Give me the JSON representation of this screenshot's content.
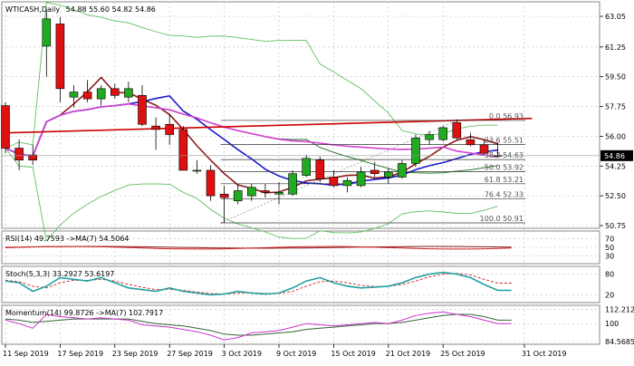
{
  "header": {
    "symbol": "WTICASH,Daily",
    "ohlc": "54.88 55.60 54.82 54.86"
  },
  "colors": {
    "bull": "#22aa22",
    "bear": "#dd1111",
    "grid": "#bbbbbb",
    "ma_blue": "#1a1acc",
    "ma_brown": "#8b1a1a",
    "ma_green": "#2c7a2c",
    "ma_magenta": "#d040d0",
    "ma_red": "#cc0000",
    "bb": "#5fbf5f",
    "osc_teal": "#20a0a0",
    "osc_red": "#cc2222",
    "mom_magenta": "#cc33cc",
    "mom_green": "#336633",
    "price_box": "#000000"
  },
  "price_axis": {
    "ticks": [
      "63.05",
      "61.25",
      "59.50",
      "57.75",
      "56.00",
      "54.25",
      "52.50",
      "50.75"
    ],
    "current": "54.86"
  },
  "fib_levels": [
    {
      "label": "0.0 56.93",
      "value": 56.93
    },
    {
      "label": "23.6 55.51",
      "value": 55.51
    },
    {
      "label": "38.2 54.63",
      "value": 54.63
    },
    {
      "label": "50.0 53.92",
      "value": 53.92
    },
    {
      "label": "61.8 53.21",
      "value": 53.21
    },
    {
      "label": "76.4 52.33",
      "value": 52.33
    },
    {
      "label": "100.0 50.91",
      "value": 50.91
    }
  ],
  "panels": {
    "rsi": {
      "label": "RSI(14) 49.7593 ->MA(7) 54.5064",
      "ticks": [
        "70",
        "50",
        "30"
      ]
    },
    "stoch": {
      "label": "Stoch(5,3,3) 33.2927 53.6197",
      "ticks": [
        "80",
        "20"
      ]
    },
    "momentum": {
      "label": "Momentum(14) 99.8726 ->MA(7) 102.7917",
      "ticks": [
        "112.2125",
        "100",
        "84.5685"
      ]
    }
  },
  "time_axis": [
    "11 Sep 2019",
    "17 Sep 2019",
    "23 Sep 2019",
    "27 Sep 2019",
    "3 Oct 2019",
    "9 Oct 2019",
    "15 Oct 2019",
    "21 Oct 2019",
    "25 Oct 2019",
    "31 Oct 2019"
  ],
  "candles": [
    {
      "o": 57.8,
      "h": 58.0,
      "l": 55.0,
      "c": 55.3
    },
    {
      "o": 55.3,
      "h": 55.8,
      "l": 54.0,
      "c": 54.6
    },
    {
      "o": 54.9,
      "h": 55.5,
      "l": 54.3,
      "c": 54.6
    },
    {
      "o": 61.3,
      "h": 63.4,
      "l": 59.5,
      "c": 62.9
    },
    {
      "o": 62.6,
      "h": 63.0,
      "l": 58.0,
      "c": 58.8
    },
    {
      "o": 58.3,
      "h": 59.0,
      "l": 57.7,
      "c": 58.6
    },
    {
      "o": 58.6,
      "h": 59.3,
      "l": 58.0,
      "c": 58.2
    },
    {
      "o": 58.2,
      "h": 59.0,
      "l": 57.8,
      "c": 58.8
    },
    {
      "o": 58.8,
      "h": 59.1,
      "l": 58.2,
      "c": 58.4
    },
    {
      "o": 58.3,
      "h": 59.2,
      "l": 58.0,
      "c": 58.8
    },
    {
      "o": 58.4,
      "h": 59.0,
      "l": 56.6,
      "c": 56.7
    },
    {
      "o": 56.6,
      "h": 57.1,
      "l": 55.2,
      "c": 56.4
    },
    {
      "o": 56.7,
      "h": 57.3,
      "l": 55.5,
      "c": 56.1
    },
    {
      "o": 56.4,
      "h": 56.6,
      "l": 54.0,
      "c": 54.0
    },
    {
      "o": 54.0,
      "h": 54.6,
      "l": 53.8,
      "c": 54.0
    },
    {
      "o": 54.0,
      "h": 54.3,
      "l": 52.2,
      "c": 52.5
    },
    {
      "o": 52.6,
      "h": 53.1,
      "l": 50.9,
      "c": 52.4
    },
    {
      "o": 52.2,
      "h": 53.2,
      "l": 52.0,
      "c": 52.8
    },
    {
      "o": 52.5,
      "h": 53.2,
      "l": 52.2,
      "c": 53.0
    },
    {
      "o": 52.8,
      "h": 53.2,
      "l": 52.4,
      "c": 52.7
    },
    {
      "o": 52.6,
      "h": 53.3,
      "l": 52.0,
      "c": 52.7
    },
    {
      "o": 52.6,
      "h": 54.0,
      "l": 52.5,
      "c": 53.8
    },
    {
      "o": 53.7,
      "h": 54.9,
      "l": 53.6,
      "c": 54.7
    },
    {
      "o": 54.6,
      "h": 54.8,
      "l": 53.3,
      "c": 53.5
    },
    {
      "o": 53.6,
      "h": 54.0,
      "l": 53.0,
      "c": 53.1
    },
    {
      "o": 53.1,
      "h": 53.6,
      "l": 52.7,
      "c": 53.4
    },
    {
      "o": 53.1,
      "h": 54.2,
      "l": 53.0,
      "c": 53.9
    },
    {
      "o": 54.0,
      "h": 54.5,
      "l": 53.6,
      "c": 53.8
    },
    {
      "o": 53.6,
      "h": 54.1,
      "l": 53.2,
      "c": 53.9
    },
    {
      "o": 53.6,
      "h": 54.6,
      "l": 53.5,
      "c": 54.4
    },
    {
      "o": 54.4,
      "h": 56.1,
      "l": 54.2,
      "c": 55.9
    },
    {
      "o": 55.8,
      "h": 56.3,
      "l": 55.5,
      "c": 56.1
    },
    {
      "o": 55.8,
      "h": 56.6,
      "l": 55.7,
      "c": 56.5
    },
    {
      "o": 56.8,
      "h": 57.0,
      "l": 55.8,
      "c": 55.9
    },
    {
      "o": 55.8,
      "h": 56.2,
      "l": 55.4,
      "c": 55.5
    },
    {
      "o": 55.5,
      "h": 55.8,
      "l": 54.9,
      "c": 55.0
    },
    {
      "o": 54.88,
      "h": 55.6,
      "l": 54.82,
      "c": 54.86
    }
  ]
}
